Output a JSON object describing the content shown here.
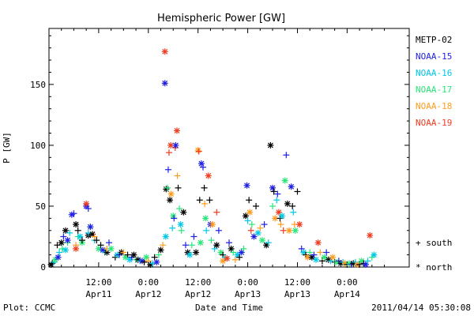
{
  "chart_data": {
    "type": "scatter",
    "title": "Hemispheric Power [GW]",
    "ylabel": "P [GW]",
    "xlabel": "Date and Time",
    "ylim": [
      0,
      196
    ],
    "yticks": [
      0,
      50,
      100,
      150
    ],
    "xlim_hours": [
      0,
      87
    ],
    "xticks": [
      {
        "h": 12,
        "time": "12:00",
        "date": "Apr11"
      },
      {
        "h": 24,
        "time": "0:00",
        "date": "Apr12"
      },
      {
        "h": 36,
        "time": "12:00",
        "date": "Apr12"
      },
      {
        "h": 48,
        "time": "0:00",
        "date": "Apr13"
      },
      {
        "h": 60,
        "time": "12:00",
        "date": "Apr13"
      },
      {
        "h": 72,
        "time": "0:00",
        "date": "Apr14"
      }
    ],
    "legend_position": "right",
    "series": [
      {
        "name": "METP-02",
        "color": "#000000"
      },
      {
        "name": "NOAA-15",
        "color": "#1e1ee6"
      },
      {
        "name": "NOAA-16",
        "color": "#00c8e6"
      },
      {
        "name": "NOAA-17",
        "color": "#28e678"
      },
      {
        "name": "NOAA-18",
        "color": "#ff9b1e"
      },
      {
        "name": "NOAA-19",
        "color": "#f03c1e"
      }
    ],
    "markers": {
      "south": "+",
      "north": "*"
    },
    "points": [
      [
        0,
        0.5,
        2,
        "n"
      ],
      [
        0,
        0.8,
        3,
        "s"
      ],
      [
        2,
        1.2,
        4,
        "s"
      ],
      [
        3,
        1.5,
        6,
        "n"
      ],
      [
        0,
        2,
        18,
        "s"
      ],
      [
        1,
        2.2,
        8,
        "n"
      ],
      [
        2,
        2.5,
        12,
        "s"
      ],
      [
        0,
        3,
        20,
        "n"
      ],
      [
        3,
        3.2,
        15,
        "s"
      ],
      [
        1,
        3.5,
        25,
        "s"
      ],
      [
        0,
        4,
        30,
        "n"
      ],
      [
        2,
        4,
        14,
        "n"
      ],
      [
        3,
        4.5,
        20,
        "s"
      ],
      [
        1,
        4.5,
        22,
        "n"
      ],
      [
        2,
        5,
        28,
        "s"
      ],
      [
        1,
        5.5,
        43,
        "n"
      ],
      [
        1,
        6,
        44,
        "s"
      ],
      [
        0,
        6.5,
        35,
        "n"
      ],
      [
        4,
        6.5,
        18,
        "s"
      ],
      [
        5,
        6.5,
        15,
        "n"
      ],
      [
        3,
        7,
        25,
        "s"
      ],
      [
        0,
        7,
        30,
        "s"
      ],
      [
        2,
        7.5,
        25,
        "n"
      ],
      [
        3,
        8,
        20,
        "n"
      ],
      [
        0,
        8,
        22,
        "s"
      ],
      [
        1,
        9,
        50,
        "n"
      ],
      [
        5,
        9,
        52,
        "n"
      ],
      [
        1,
        9.5,
        48,
        "s"
      ],
      [
        0,
        9.5,
        26,
        "n"
      ],
      [
        2,
        9.5,
        28,
        "s"
      ],
      [
        3,
        10,
        33,
        "s"
      ],
      [
        1,
        10,
        33,
        "n"
      ],
      [
        0,
        10.5,
        27,
        "n"
      ],
      [
        2,
        11,
        22,
        "s"
      ],
      [
        4,
        11,
        25,
        "s"
      ],
      [
        0,
        11.5,
        22,
        "s"
      ],
      [
        3,
        12,
        15,
        "n"
      ],
      [
        0,
        12.5,
        18,
        "s"
      ],
      [
        1,
        13,
        14,
        "n"
      ],
      [
        2,
        13.5,
        12,
        "s"
      ],
      [
        0,
        14,
        12,
        "n"
      ],
      [
        4,
        14,
        15,
        "s"
      ],
      [
        1,
        14.5,
        20,
        "s"
      ],
      [
        3,
        15,
        15,
        "n"
      ],
      [
        0,
        16,
        8,
        "s"
      ],
      [
        2,
        16.5,
        10,
        "n"
      ],
      [
        1,
        17,
        10,
        "s"
      ],
      [
        0,
        17.5,
        12,
        "n"
      ],
      [
        4,
        18,
        12,
        "s"
      ],
      [
        3,
        18.5,
        8,
        "n"
      ],
      [
        0,
        19,
        10,
        "s"
      ],
      [
        2,
        19.5,
        6,
        "n"
      ],
      [
        1,
        20,
        8,
        "s"
      ],
      [
        0,
        20.5,
        10,
        "n"
      ],
      [
        3,
        21,
        6,
        "s"
      ],
      [
        0,
        21.5,
        6,
        "n"
      ],
      [
        2,
        22,
        5,
        "s"
      ],
      [
        1,
        22.5,
        5,
        "n"
      ],
      [
        0,
        23,
        4,
        "s"
      ],
      [
        3,
        23.5,
        8,
        "n"
      ],
      [
        4,
        24,
        5,
        "s"
      ],
      [
        0,
        24.5,
        2,
        "n"
      ],
      [
        2,
        25,
        3,
        "s"
      ],
      [
        0,
        25.5,
        8,
        "s"
      ],
      [
        1,
        26,
        4,
        "n"
      ],
      [
        3,
        26.5,
        10,
        "s"
      ],
      [
        0,
        27,
        14,
        "n"
      ],
      [
        4,
        27.5,
        18,
        "s"
      ],
      [
        5,
        28,
        177,
        "n"
      ],
      [
        1,
        28,
        151,
        "n"
      ],
      [
        2,
        28.2,
        25,
        "n"
      ],
      [
        0,
        28.3,
        64,
        "n"
      ],
      [
        3,
        28.6,
        65,
        "s"
      ],
      [
        1,
        28.8,
        80,
        "s"
      ],
      [
        5,
        29,
        94,
        "s"
      ],
      [
        0,
        29.2,
        55,
        "n"
      ],
      [
        5,
        29.4,
        100,
        "n"
      ],
      [
        4,
        29.5,
        60,
        "n"
      ],
      [
        2,
        29.8,
        32,
        "s"
      ],
      [
        3,
        30,
        42,
        "n"
      ],
      [
        1,
        30.2,
        40,
        "s"
      ],
      [
        5,
        30.5,
        98,
        "s"
      ],
      [
        1,
        30.6,
        100,
        "n"
      ],
      [
        5,
        30.9,
        112,
        "n"
      ],
      [
        4,
        31,
        75,
        "s"
      ],
      [
        0,
        31.2,
        65,
        "s"
      ],
      [
        3,
        31.5,
        48,
        "s"
      ],
      [
        2,
        31.8,
        35,
        "n"
      ],
      [
        3,
        32,
        30,
        "s"
      ],
      [
        0,
        32.5,
        45,
        "n"
      ],
      [
        1,
        33,
        18,
        "s"
      ],
      [
        0,
        33.5,
        12,
        "n"
      ],
      [
        2,
        34,
        10,
        "n"
      ],
      [
        3,
        34.5,
        18,
        "s"
      ],
      [
        1,
        35,
        25,
        "s"
      ],
      [
        0,
        35.5,
        12,
        "n"
      ],
      [
        4,
        36,
        96,
        "n"
      ],
      [
        5,
        36.2,
        95,
        "s"
      ],
      [
        0,
        36.4,
        55,
        "s"
      ],
      [
        3,
        36.6,
        20,
        "n"
      ],
      [
        1,
        36.8,
        85,
        "n"
      ],
      [
        1,
        37.2,
        82,
        "s"
      ],
      [
        0,
        37.5,
        65,
        "s"
      ],
      [
        4,
        37.6,
        52,
        "s"
      ],
      [
        3,
        37.8,
        40,
        "n"
      ],
      [
        2,
        38,
        30,
        "s"
      ],
      [
        5,
        38.5,
        75,
        "n"
      ],
      [
        0,
        38.8,
        55,
        "s"
      ],
      [
        1,
        39,
        35,
        "n"
      ],
      [
        3,
        39.2,
        22,
        "s"
      ],
      [
        4,
        39.5,
        35,
        "n"
      ],
      [
        2,
        40,
        15,
        "s"
      ],
      [
        0,
        40.5,
        18,
        "n"
      ],
      [
        5,
        40.5,
        45,
        "s"
      ],
      [
        1,
        41,
        30,
        "s"
      ],
      [
        3,
        41.5,
        12,
        "n"
      ],
      [
        0,
        42,
        10,
        "s"
      ],
      [
        4,
        42,
        5,
        "n"
      ],
      [
        2,
        42.5,
        8,
        "s"
      ],
      [
        5,
        43,
        7,
        "n"
      ],
      [
        1,
        43.5,
        20,
        "s"
      ],
      [
        0,
        44,
        15,
        "n"
      ],
      [
        3,
        44.5,
        12,
        "s"
      ],
      [
        4,
        45,
        6,
        "s"
      ],
      [
        2,
        45.5,
        10,
        "n"
      ],
      [
        0,
        46,
        8,
        "s"
      ],
      [
        1,
        46.5,
        12,
        "n"
      ],
      [
        3,
        47,
        15,
        "s"
      ],
      [
        0,
        47.5,
        42,
        "n"
      ],
      [
        1,
        47.8,
        67,
        "n"
      ],
      [
        2,
        48,
        38,
        "s"
      ],
      [
        0,
        48.3,
        55,
        "s"
      ],
      [
        4,
        48.5,
        45,
        "n"
      ],
      [
        5,
        48.8,
        30,
        "s"
      ],
      [
        3,
        49,
        35,
        "s"
      ],
      [
        1,
        49.5,
        25,
        "n"
      ],
      [
        0,
        50,
        50,
        "s"
      ],
      [
        2,
        50.5,
        28,
        "n"
      ],
      [
        4,
        51,
        32,
        "s"
      ],
      [
        3,
        51.5,
        22,
        "n"
      ],
      [
        1,
        52,
        35,
        "s"
      ],
      [
        0,
        52.5,
        18,
        "n"
      ],
      [
        2,
        53,
        20,
        "s"
      ],
      [
        0,
        53.5,
        100,
        "n"
      ],
      [
        1,
        54,
        65,
        "n"
      ],
      [
        3,
        54,
        50,
        "s"
      ],
      [
        0,
        54.3,
        62,
        "s"
      ],
      [
        4,
        54.6,
        40,
        "n"
      ],
      [
        2,
        55,
        55,
        "s"
      ],
      [
        1,
        55.2,
        60,
        "s"
      ],
      [
        5,
        55.5,
        45,
        "n"
      ],
      [
        0,
        55.8,
        40,
        "s"
      ],
      [
        4,
        56,
        35,
        "s"
      ],
      [
        2,
        56.3,
        42,
        "n"
      ],
      [
        5,
        56.6,
        30,
        "s"
      ],
      [
        3,
        57,
        71,
        "n"
      ],
      [
        1,
        57.3,
        92,
        "s"
      ],
      [
        0,
        57.6,
        52,
        "n"
      ],
      [
        4,
        58,
        30,
        "n"
      ],
      [
        1,
        58.5,
        66,
        "n"
      ],
      [
        0,
        58.8,
        50,
        "s"
      ],
      [
        2,
        59,
        45,
        "s"
      ],
      [
        4,
        59.3,
        35,
        "s"
      ],
      [
        3,
        59.5,
        30,
        "n"
      ],
      [
        0,
        60,
        62,
        "s"
      ],
      [
        5,
        60.5,
        35,
        "n"
      ],
      [
        1,
        61,
        15,
        "s"
      ],
      [
        2,
        61.5,
        12,
        "n"
      ],
      [
        0,
        62,
        10,
        "s"
      ],
      [
        4,
        62.5,
        8,
        "n"
      ],
      [
        3,
        63,
        12,
        "s"
      ],
      [
        0,
        63.5,
        8,
        "n"
      ],
      [
        1,
        64,
        10,
        "s"
      ],
      [
        2,
        64.5,
        6,
        "n"
      ],
      [
        5,
        65,
        20,
        "n"
      ],
      [
        4,
        65.5,
        12,
        "s"
      ],
      [
        0,
        66,
        5,
        "s"
      ],
      [
        3,
        66.5,
        8,
        "n"
      ],
      [
        1,
        67,
        12,
        "s"
      ],
      [
        0,
        67.5,
        6,
        "n"
      ],
      [
        2,
        68,
        5,
        "s"
      ],
      [
        4,
        68.5,
        8,
        "n"
      ],
      [
        0,
        69,
        4,
        "s"
      ],
      [
        3,
        69.5,
        4,
        "n"
      ],
      [
        1,
        70,
        5,
        "s"
      ],
      [
        0,
        70.5,
        3,
        "n"
      ],
      [
        2,
        71,
        4,
        "s"
      ],
      [
        4,
        71.5,
        3,
        "n"
      ],
      [
        0,
        72,
        2,
        "s"
      ],
      [
        3,
        72.5,
        3,
        "n"
      ],
      [
        1,
        73,
        2,
        "s"
      ],
      [
        0,
        73.5,
        3,
        "n"
      ],
      [
        2,
        74,
        4,
        "s"
      ],
      [
        4,
        74.5,
        2,
        "n"
      ],
      [
        0,
        75,
        2,
        "s"
      ],
      [
        3,
        75.5,
        5,
        "n"
      ],
      [
        0,
        76,
        3,
        "s"
      ],
      [
        1,
        76.5,
        2,
        "n"
      ],
      [
        2,
        77,
        5,
        "s"
      ],
      [
        5,
        77.5,
        26,
        "n"
      ],
      [
        3,
        78,
        8,
        "s"
      ],
      [
        2,
        78.5,
        10,
        "n"
      ]
    ]
  },
  "legend": {
    "entries": [
      "METP-02",
      "NOAA-15",
      "NOAA-16",
      "NOAA-17",
      "NOAA-18",
      "NOAA-19"
    ],
    "south_label": "+ south",
    "north_label": "* north"
  },
  "footer": {
    "left": "Plot: CCMC",
    "right": "2011/04/14 05:30:08"
  }
}
